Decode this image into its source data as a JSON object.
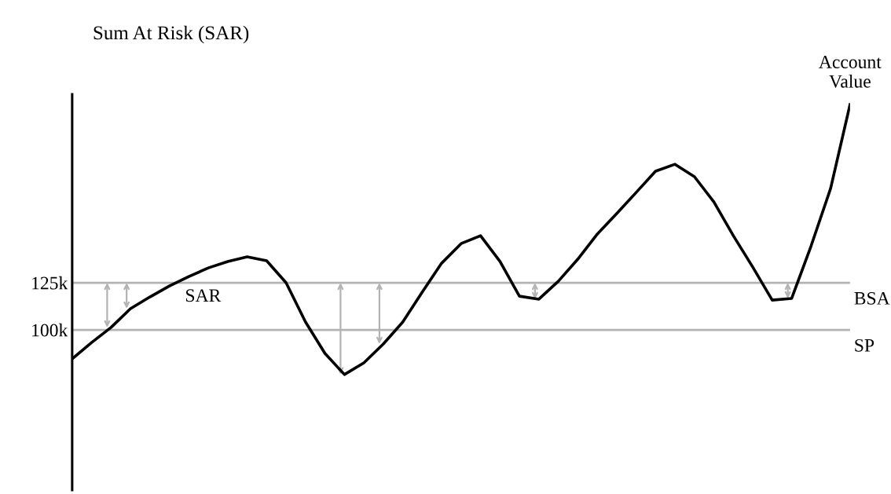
{
  "chart_data": {
    "type": "line",
    "title": "Sum At Risk (SAR)",
    "categories": [
      null,
      null,
      null,
      null,
      null,
      null,
      null,
      null,
      null,
      null,
      null,
      null,
      null,
      null,
      null,
      null,
      null,
      null,
      null,
      null,
      null,
      null,
      null,
      null,
      null,
      null,
      null,
      null,
      null,
      null,
      null,
      null,
      null,
      null,
      null,
      null,
      null,
      null,
      null,
      null,
      null
    ],
    "series": [
      {
        "name": "Account Value",
        "color": "#000000",
        "values": [
          84.6,
          93.3,
          101.3,
          111.3,
          117.5,
          123.3,
          128.3,
          132.9,
          136.3,
          138.8,
          136.7,
          125,
          104.2,
          87.5,
          76.3,
          82.5,
          92.5,
          104.2,
          120,
          135.4,
          145.8,
          150,
          136.3,
          117.9,
          116.3,
          125.8,
          137.5,
          150.8,
          161.7,
          172.9,
          184.2,
          187.9,
          181.3,
          167.9,
          150,
          133.3,
          115.8,
          116.7,
          144.6,
          175,
          219.6
        ]
      }
    ],
    "ylim": [
      15,
      225
    ],
    "yticks": [
      {
        "value": 100,
        "label": "100k"
      },
      {
        "value": 125,
        "label": "125k"
      }
    ],
    "ref_lines": [
      {
        "axis": "y",
        "value": 125,
        "label": "BSA",
        "color": "#b3b3b3"
      },
      {
        "axis": "y",
        "value": 100,
        "label": "SP",
        "color": "#b3b3b3"
      }
    ],
    "annotations": [
      "SAR"
    ],
    "tick_labels": "y",
    "grid": false,
    "legend": false,
    "marker": "none",
    "line_style": "solid"
  }
}
